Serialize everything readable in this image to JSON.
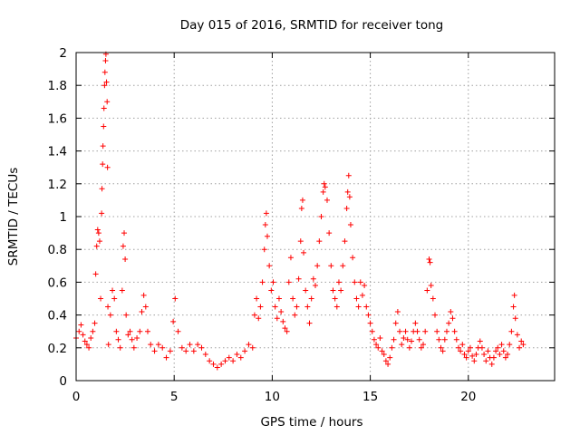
{
  "chart_data": {
    "type": "scatter",
    "title": "Day 015 of 2016, SRMTID for receiver tong",
    "xlabel": "GPS time / hours",
    "ylabel": "SRMTID / TECUs",
    "xlim": [
      0,
      24.4
    ],
    "ylim": [
      0,
      2
    ],
    "x_ticks": [
      0,
      5,
      10,
      15,
      20
    ],
    "y_ticks": [
      0,
      0.2,
      0.4,
      0.6,
      0.8,
      1,
      1.2,
      1.4,
      1.6,
      1.8,
      2
    ],
    "x_tick_labels": [
      "0",
      "5",
      "10",
      "15",
      "20"
    ],
    "y_tick_labels": [
      "0",
      "0.2",
      "0.4",
      "0.6",
      "0.8",
      "1",
      "1.2",
      "1.4",
      "1.6",
      "1.8",
      "2"
    ],
    "grid": true,
    "marker": "+",
    "marker_color": "#ff0000",
    "series": [
      {
        "name": "SRMTID",
        "points": [
          [
            0.0,
            0.26
          ],
          [
            0.15,
            0.3
          ],
          [
            0.25,
            0.34
          ],
          [
            0.35,
            0.28
          ],
          [
            0.45,
            0.24
          ],
          [
            0.55,
            0.22
          ],
          [
            0.65,
            0.2
          ],
          [
            0.75,
            0.26
          ],
          [
            0.85,
            0.3
          ],
          [
            0.95,
            0.35
          ],
          [
            1.0,
            0.65
          ],
          [
            1.05,
            0.82
          ],
          [
            1.1,
            0.92
          ],
          [
            1.15,
            0.9
          ],
          [
            1.2,
            0.85
          ],
          [
            1.25,
            0.5
          ],
          [
            1.3,
            1.02
          ],
          [
            1.32,
            1.17
          ],
          [
            1.35,
            1.32
          ],
          [
            1.37,
            1.43
          ],
          [
            1.4,
            1.55
          ],
          [
            1.42,
            1.66
          ],
          [
            1.45,
            1.8
          ],
          [
            1.47,
            1.88
          ],
          [
            1.5,
            1.95
          ],
          [
            1.52,
            1.99
          ],
          [
            1.55,
            1.82
          ],
          [
            1.58,
            1.7
          ],
          [
            1.6,
            1.3
          ],
          [
            1.62,
            0.45
          ],
          [
            1.65,
            0.22
          ],
          [
            1.75,
            0.4
          ],
          [
            1.85,
            0.55
          ],
          [
            1.95,
            0.5
          ],
          [
            2.05,
            0.3
          ],
          [
            2.15,
            0.25
          ],
          [
            2.25,
            0.2
          ],
          [
            2.35,
            0.55
          ],
          [
            2.4,
            0.82
          ],
          [
            2.45,
            0.9
          ],
          [
            2.5,
            0.74
          ],
          [
            2.55,
            0.4
          ],
          [
            2.65,
            0.28
          ],
          [
            2.75,
            0.3
          ],
          [
            2.85,
            0.25
          ],
          [
            2.95,
            0.2
          ],
          [
            3.1,
            0.26
          ],
          [
            3.25,
            0.3
          ],
          [
            3.35,
            0.42
          ],
          [
            3.45,
            0.52
          ],
          [
            3.55,
            0.45
          ],
          [
            3.65,
            0.3
          ],
          [
            3.8,
            0.22
          ],
          [
            4.0,
            0.18
          ],
          [
            4.2,
            0.22
          ],
          [
            4.4,
            0.2
          ],
          [
            4.6,
            0.14
          ],
          [
            4.8,
            0.18
          ],
          [
            4.95,
            0.36
          ],
          [
            5.05,
            0.5
          ],
          [
            5.2,
            0.3
          ],
          [
            5.4,
            0.2
          ],
          [
            5.6,
            0.18
          ],
          [
            5.8,
            0.22
          ],
          [
            6.0,
            0.18
          ],
          [
            6.2,
            0.22
          ],
          [
            6.4,
            0.2
          ],
          [
            6.6,
            0.16
          ],
          [
            6.8,
            0.12
          ],
          [
            7.0,
            0.1
          ],
          [
            7.2,
            0.08
          ],
          [
            7.4,
            0.1
          ],
          [
            7.6,
            0.12
          ],
          [
            7.8,
            0.14
          ],
          [
            8.0,
            0.12
          ],
          [
            8.2,
            0.16
          ],
          [
            8.4,
            0.14
          ],
          [
            8.6,
            0.18
          ],
          [
            8.8,
            0.22
          ],
          [
            9.0,
            0.2
          ],
          [
            9.1,
            0.4
          ],
          [
            9.2,
            0.5
          ],
          [
            9.3,
            0.38
          ],
          [
            9.4,
            0.45
          ],
          [
            9.5,
            0.6
          ],
          [
            9.6,
            0.8
          ],
          [
            9.65,
            0.95
          ],
          [
            9.7,
            1.02
          ],
          [
            9.75,
            0.88
          ],
          [
            9.85,
            0.7
          ],
          [
            9.95,
            0.55
          ],
          [
            10.05,
            0.6
          ],
          [
            10.15,
            0.45
          ],
          [
            10.25,
            0.38
          ],
          [
            10.35,
            0.5
          ],
          [
            10.45,
            0.42
          ],
          [
            10.55,
            0.36
          ],
          [
            10.65,
            0.32
          ],
          [
            10.75,
            0.3
          ],
          [
            10.85,
            0.6
          ],
          [
            10.95,
            0.75
          ],
          [
            11.05,
            0.5
          ],
          [
            11.15,
            0.4
          ],
          [
            11.25,
            0.45
          ],
          [
            11.35,
            0.62
          ],
          [
            11.45,
            0.85
          ],
          [
            11.5,
            1.05
          ],
          [
            11.55,
            1.1
          ],
          [
            11.6,
            0.78
          ],
          [
            11.7,
            0.55
          ],
          [
            11.8,
            0.45
          ],
          [
            11.9,
            0.35
          ],
          [
            12.0,
            0.5
          ],
          [
            12.1,
            0.62
          ],
          [
            12.2,
            0.58
          ],
          [
            12.3,
            0.7
          ],
          [
            12.4,
            0.85
          ],
          [
            12.5,
            1.0
          ],
          [
            12.6,
            1.15
          ],
          [
            12.65,
            1.2
          ],
          [
            12.7,
            1.18
          ],
          [
            12.8,
            1.1
          ],
          [
            12.9,
            0.9
          ],
          [
            13.0,
            0.7
          ],
          [
            13.1,
            0.55
          ],
          [
            13.2,
            0.5
          ],
          [
            13.3,
            0.45
          ],
          [
            13.4,
            0.6
          ],
          [
            13.5,
            0.55
          ],
          [
            13.6,
            0.7
          ],
          [
            13.7,
            0.85
          ],
          [
            13.8,
            1.05
          ],
          [
            13.85,
            1.15
          ],
          [
            13.9,
            1.25
          ],
          [
            13.95,
            1.12
          ],
          [
            14.0,
            0.95
          ],
          [
            14.1,
            0.75
          ],
          [
            14.2,
            0.6
          ],
          [
            14.3,
            0.5
          ],
          [
            14.4,
            0.45
          ],
          [
            14.5,
            0.6
          ],
          [
            14.6,
            0.52
          ],
          [
            14.7,
            0.58
          ],
          [
            14.8,
            0.45
          ],
          [
            14.9,
            0.4
          ],
          [
            15.0,
            0.35
          ],
          [
            15.1,
            0.3
          ],
          [
            15.2,
            0.25
          ],
          [
            15.3,
            0.22
          ],
          [
            15.4,
            0.2
          ],
          [
            15.5,
            0.26
          ],
          [
            15.6,
            0.18
          ],
          [
            15.7,
            0.16
          ],
          [
            15.8,
            0.12
          ],
          [
            15.9,
            0.1
          ],
          [
            16.0,
            0.14
          ],
          [
            16.1,
            0.2
          ],
          [
            16.2,
            0.25
          ],
          [
            16.3,
            0.35
          ],
          [
            16.4,
            0.42
          ],
          [
            16.5,
            0.3
          ],
          [
            16.6,
            0.22
          ],
          [
            16.7,
            0.26
          ],
          [
            16.8,
            0.3
          ],
          [
            16.9,
            0.25
          ],
          [
            17.0,
            0.2
          ],
          [
            17.1,
            0.24
          ],
          [
            17.2,
            0.3
          ],
          [
            17.3,
            0.35
          ],
          [
            17.4,
            0.3
          ],
          [
            17.5,
            0.25
          ],
          [
            17.6,
            0.2
          ],
          [
            17.7,
            0.22
          ],
          [
            17.8,
            0.3
          ],
          [
            17.9,
            0.55
          ],
          [
            18.0,
            0.74
          ],
          [
            18.05,
            0.72
          ],
          [
            18.1,
            0.58
          ],
          [
            18.2,
            0.5
          ],
          [
            18.3,
            0.4
          ],
          [
            18.4,
            0.3
          ],
          [
            18.5,
            0.25
          ],
          [
            18.6,
            0.2
          ],
          [
            18.7,
            0.18
          ],
          [
            18.8,
            0.25
          ],
          [
            18.9,
            0.3
          ],
          [
            19.0,
            0.35
          ],
          [
            19.1,
            0.42
          ],
          [
            19.2,
            0.38
          ],
          [
            19.3,
            0.3
          ],
          [
            19.4,
            0.25
          ],
          [
            19.5,
            0.2
          ],
          [
            19.6,
            0.18
          ],
          [
            19.7,
            0.22
          ],
          [
            19.8,
            0.16
          ],
          [
            19.9,
            0.14
          ],
          [
            20.0,
            0.18
          ],
          [
            20.1,
            0.2
          ],
          [
            20.2,
            0.15
          ],
          [
            20.3,
            0.12
          ],
          [
            20.4,
            0.16
          ],
          [
            20.5,
            0.2
          ],
          [
            20.6,
            0.24
          ],
          [
            20.7,
            0.2
          ],
          [
            20.8,
            0.16
          ],
          [
            20.9,
            0.12
          ],
          [
            21.0,
            0.18
          ],
          [
            21.1,
            0.14
          ],
          [
            21.2,
            0.1
          ],
          [
            21.3,
            0.14
          ],
          [
            21.4,
            0.18
          ],
          [
            21.5,
            0.2
          ],
          [
            21.6,
            0.16
          ],
          [
            21.7,
            0.22
          ],
          [
            21.8,
            0.18
          ],
          [
            21.9,
            0.14
          ],
          [
            22.0,
            0.16
          ],
          [
            22.1,
            0.22
          ],
          [
            22.2,
            0.3
          ],
          [
            22.3,
            0.45
          ],
          [
            22.35,
            0.52
          ],
          [
            22.4,
            0.38
          ],
          [
            22.5,
            0.28
          ],
          [
            22.6,
            0.2
          ],
          [
            22.7,
            0.24
          ],
          [
            22.8,
            0.22
          ]
        ]
      }
    ]
  }
}
